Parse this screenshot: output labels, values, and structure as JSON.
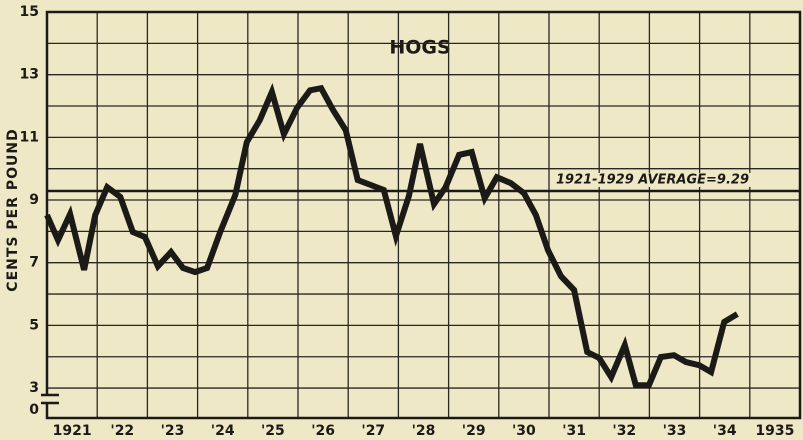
{
  "chart_data": {
    "type": "line",
    "title": "HOGS",
    "ylabel": "CENTS PER POUND",
    "xlim": [
      1921,
      1936
    ],
    "xticks": [
      {
        "value": 1921.5,
        "label": "1921"
      },
      {
        "value": 1922.5,
        "label": "'22"
      },
      {
        "value": 1923.5,
        "label": "'23"
      },
      {
        "value": 1924.5,
        "label": "'24"
      },
      {
        "value": 1925.5,
        "label": "'25"
      },
      {
        "value": 1926.5,
        "label": "'26"
      },
      {
        "value": 1927.5,
        "label": "'27"
      },
      {
        "value": 1928.5,
        "label": "'28"
      },
      {
        "value": 1929.5,
        "label": "'29"
      },
      {
        "value": 1930.5,
        "label": "'30"
      },
      {
        "value": 1931.5,
        "label": "'31"
      },
      {
        "value": 1932.5,
        "label": "'32"
      },
      {
        "value": 1933.5,
        "label": "'33"
      },
      {
        "value": 1934.5,
        "label": "'34"
      },
      {
        "value": 1935.5,
        "label": "1935"
      }
    ],
    "minor_xticks": [
      1922,
      1923,
      1924,
      1925,
      1926,
      1927,
      1928,
      1929,
      1930,
      1931,
      1932,
      1933,
      1934,
      1935
    ],
    "ylim": [
      2.3,
      15
    ],
    "yticks": [
      0,
      3,
      5,
      7,
      9,
      11,
      13,
      15
    ],
    "minor_yticks": [
      4,
      6,
      8,
      10,
      12,
      14
    ],
    "axis_break": true,
    "grid": true,
    "reference_line": {
      "value": 9.29,
      "label": "1921-1929 AVERAGE=9.29"
    },
    "series": [
      {
        "color": "#1c1a17",
        "x": [
          1921.0,
          1921.22,
          1921.46,
          1921.74,
          1921.96,
          1922.2,
          1922.46,
          1922.71,
          1922.95,
          1923.21,
          1923.47,
          1923.71,
          1923.95,
          1924.19,
          1924.45,
          1924.75,
          1924.98,
          1925.24,
          1925.48,
          1925.72,
          1925.98,
          1926.24,
          1926.46,
          1926.7,
          1926.95,
          1927.19,
          1927.45,
          1927.71,
          1927.95,
          1928.21,
          1928.43,
          1928.71,
          1928.94,
          1929.21,
          1929.46,
          1929.72,
          1929.96,
          1930.24,
          1930.5,
          1930.74,
          1930.98,
          1931.24,
          1931.5,
          1931.76,
          1932.0,
          1932.24,
          1932.51,
          1932.73,
          1932.99,
          1933.23,
          1933.49,
          1933.73,
          1933.99,
          1934.23,
          1934.49,
          1934.75
        ],
        "values": [
          8.52,
          7.72,
          8.55,
          6.77,
          8.52,
          9.41,
          9.1,
          7.98,
          7.82,
          6.89,
          7.34,
          6.83,
          6.7,
          6.83,
          7.98,
          9.16,
          10.85,
          11.55,
          12.45,
          11.1,
          11.94,
          12.5,
          12.57,
          11.87,
          11.23,
          9.64,
          9.48,
          9.32,
          7.85,
          9.13,
          10.79,
          8.87,
          9.41,
          10.44,
          10.53,
          9.06,
          9.73,
          9.54,
          9.22,
          8.52,
          7.4,
          6.57,
          6.13,
          4.15,
          3.96,
          3.35,
          4.37,
          3.09,
          3.09,
          3.99,
          4.05,
          3.83,
          3.73,
          3.51,
          5.11,
          5.36
        ]
      }
    ]
  }
}
